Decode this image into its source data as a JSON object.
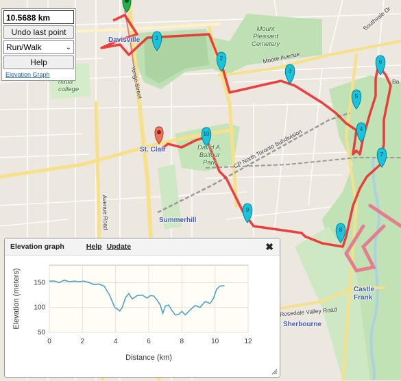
{
  "controls": {
    "distance": "10.5688 km",
    "undo_label": "Undo last point",
    "mode_value": "Run/Walk",
    "help_label": "Help",
    "elevation_link": "Elevation Graph"
  },
  "map": {
    "places": {
      "davisville": "Davisville",
      "st_clair": "St. Clair",
      "summerhill": "Summerhill",
      "castle_frank": "Castle\nFrank",
      "sherbourne": "Sherbourne"
    },
    "parks": {
      "mount_pleasant": "Mount\nPleasant\nCemetery",
      "balfour": "David A.\nBalfour\nPark"
    },
    "streets": {
      "moore": "Moore Avenue",
      "southvale": "Southvale Dr",
      "yonge": "Yonge Street",
      "avenue_rd": "Avenue Road",
      "cp_north": "CP North Toronto Subdivision",
      "cp_yard": "CP North Toronto Subdivision",
      "rosedale": "Rosedale Valley Road",
      "college": "nada\ncollege",
      "bay": "Ba"
    },
    "markers": [
      "1",
      "2",
      "3",
      "4",
      "5",
      "6",
      "7",
      "8",
      "9",
      "10"
    ]
  },
  "elevation_panel": {
    "title": "Elevation graph",
    "help_link": "Help",
    "update_link": "Update"
  },
  "chart_data": {
    "type": "line",
    "title": "",
    "xlabel": "Distance (km)",
    "ylabel": "Elevation (meters)",
    "xlim": [
      0,
      12
    ],
    "ylim": [
      50,
      185
    ],
    "x_ticks": [
      "0",
      "2",
      "4",
      "6",
      "8",
      "10",
      "12"
    ],
    "y_ticks": [
      "150",
      "100",
      "50"
    ],
    "series": [
      {
        "color": "#4aa3c7",
        "x": [
          0,
          0.3,
          0.6,
          0.9,
          1.2,
          1.5,
          1.8,
          2.1,
          2.4,
          2.7,
          3.0,
          3.3,
          3.6,
          3.8,
          3.95,
          4.1,
          4.25,
          4.4,
          4.6,
          4.8,
          5.0,
          5.3,
          5.6,
          5.9,
          6.1,
          6.3,
          6.5,
          6.7,
          6.85,
          7.0,
          7.2,
          7.4,
          7.6,
          7.8,
          8.0,
          8.2,
          8.5,
          8.8,
          9.1,
          9.4,
          9.7,
          9.9,
          10.1,
          10.3,
          10.57
        ],
        "y": [
          153,
          153,
          150,
          155,
          152,
          153,
          152,
          153,
          150,
          146,
          147,
          143,
          127,
          112,
          100,
          97,
          93,
          100,
          120,
          128,
          117,
          124,
          125,
          119,
          124,
          123,
          115,
          105,
          88,
          103,
          105,
          94,
          85,
          86,
          92,
          85,
          95,
          104,
          100,
          112,
          108,
          118,
          137,
          143,
          144
        ]
      }
    ]
  }
}
